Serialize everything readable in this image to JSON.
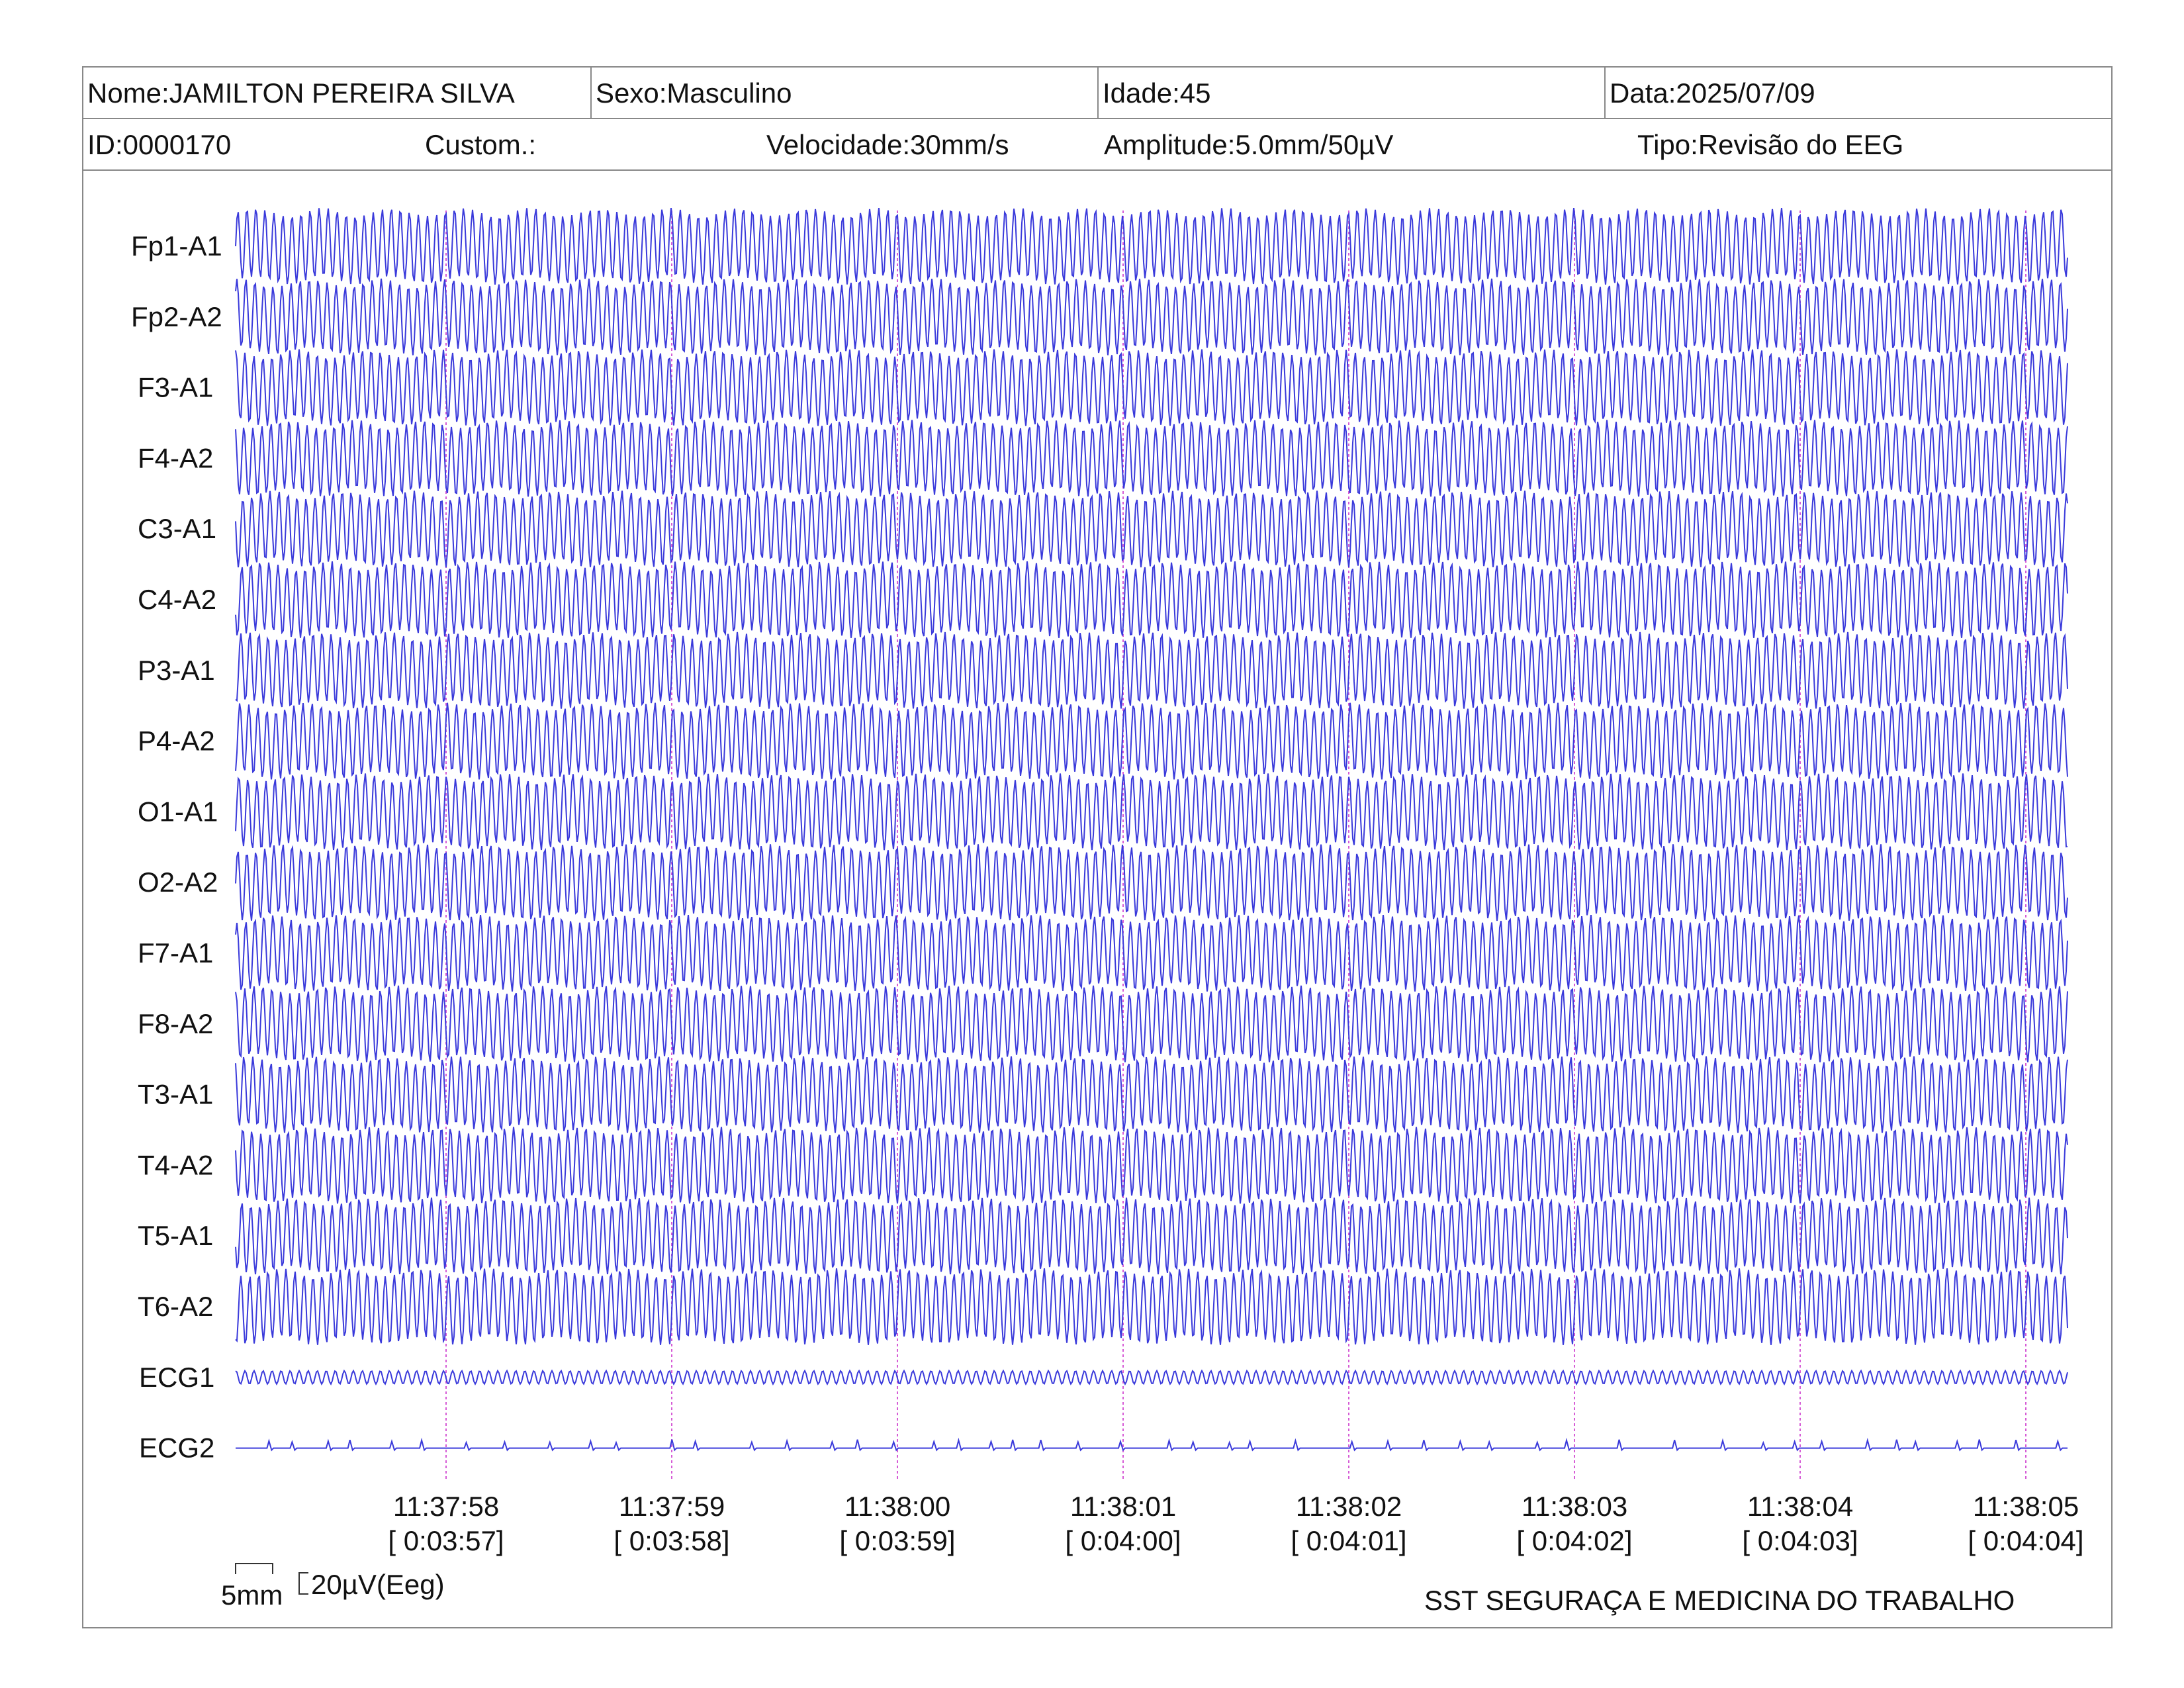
{
  "header": {
    "nome": "Nome:JAMILTON PEREIRA SILVA",
    "sexo": "Sexo:Masculino",
    "idade": "Idade:45",
    "data": "Data:2025/07/09",
    "id": "ID:0000170",
    "custom": "Custom.:",
    "velocidade": "Velocidade:30mm/s",
    "amplitude": "Amplitude:5.0mm/50µV",
    "tipo": "Tipo:Revisão do EEG"
  },
  "scale": {
    "time_label": "5mm",
    "amp_label": "20µV(Eeg)"
  },
  "footer": {
    "institution": "SST SEGURAÇA E MEDICINA DO TRABALHO"
  },
  "colors": {
    "trace": "#3a3adb",
    "marker": "#d65bd6",
    "border": "#888888"
  },
  "chart_data": {
    "type": "line",
    "channels": [
      "Fp1-A1",
      "Fp2-A2",
      "F3-A1",
      "F4-A2",
      "C3-A1",
      "C4-A2",
      "P3-A1",
      "P4-A2",
      "O1-A1",
      "O2-A2",
      "F7-A1",
      "F8-A2",
      "T3-A1",
      "T4-A2",
      "T5-A1",
      "T6-A2",
      "ECG1",
      "ECG2"
    ],
    "time_markers": [
      {
        "clock": "11:37:58",
        "elapsed": "[ 0:03:57]"
      },
      {
        "clock": "11:37:59",
        "elapsed": "[ 0:03:58]"
      },
      {
        "clock": "11:38:00",
        "elapsed": "[ 0:03:59]"
      },
      {
        "clock": "11:38:01",
        "elapsed": "[ 0:04:00]"
      },
      {
        "clock": "11:38:02",
        "elapsed": "[ 0:04:01]"
      },
      {
        "clock": "11:38:03",
        "elapsed": "[ 0:04:02]"
      },
      {
        "clock": "11:38:04",
        "elapsed": "[ 0:04:03]"
      },
      {
        "clock": "11:38:05",
        "elapsed": "[ 0:04:04]"
      }
    ],
    "eeg_cycles_per_second": 25,
    "seconds_visible": 8.1
  }
}
